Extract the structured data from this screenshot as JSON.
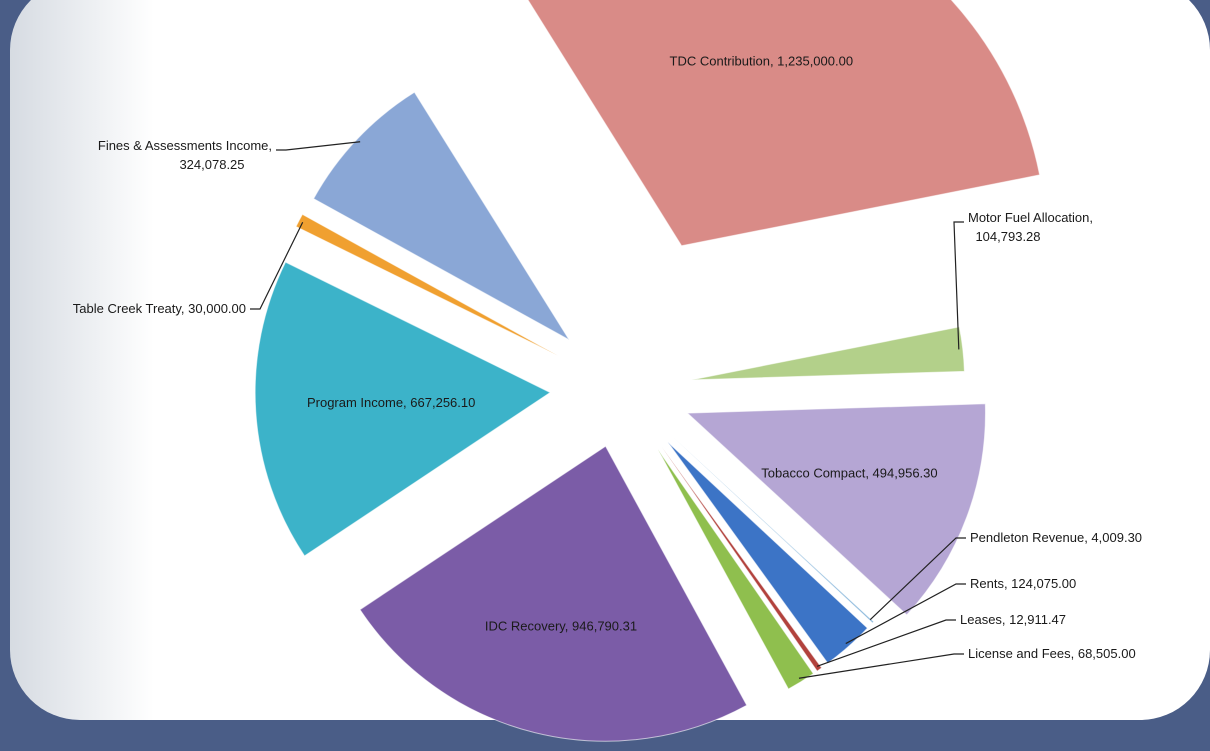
{
  "chart_data": {
    "type": "pie",
    "exploded": true,
    "title": "",
    "slices": [
      {
        "label": "TDC Contribution",
        "value": 1235000.0,
        "value_text": "1,235,000.00",
        "color": "#d98b87"
      },
      {
        "label": "Motor Fuel Allocation",
        "value": 104793.28,
        "value_text": "104,793.28",
        "color": "#b3d08a"
      },
      {
        "label": "Tobacco Compact",
        "value": 494956.3,
        "value_text": "494,956.30",
        "color": "#b5a6d4"
      },
      {
        "label": "Pendleton Revenue",
        "value": 4009.3,
        "value_text": "4,009.30",
        "color": "#7fb1d8"
      },
      {
        "label": "Rents",
        "value": 124075.0,
        "value_text": "124,075.00",
        "color": "#3c74c6"
      },
      {
        "label": "Leases",
        "value": 12911.47,
        "value_text": "12,911.47",
        "color": "#b2423d"
      },
      {
        "label": "License and Fees",
        "value": 68505.0,
        "value_text": "68,505.00",
        "color": "#8fbf4e"
      },
      {
        "label": "IDC Recovery",
        "value": 946790.31,
        "value_text": "946,790.31",
        "color": "#7b5ca7"
      },
      {
        "label": "Program Income",
        "value": 667256.1,
        "value_text": "667,256.10",
        "color": "#3cb3c9"
      },
      {
        "label": "Table Creek Treaty",
        "value": 30000.0,
        "value_text": "30,000.00",
        "color": "#f0a030"
      },
      {
        "label": "Fines & Assessments Income",
        "value": 324078.25,
        "value_text": "324,078.25",
        "color": "#8aa7d6"
      }
    ]
  }
}
